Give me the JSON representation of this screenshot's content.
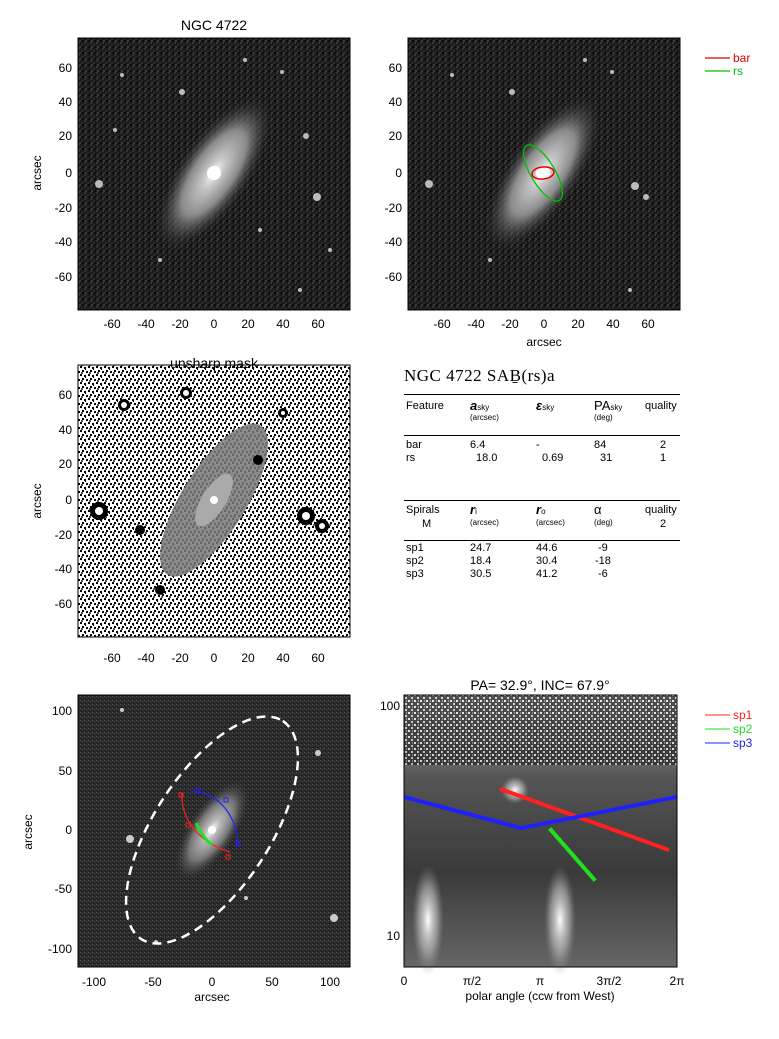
{
  "panel_top_left": {
    "title": "NGC 4722",
    "xticks": [
      "-60",
      "-40",
      "-20",
      "0",
      "20",
      "40",
      "60"
    ],
    "yticks": [
      "60",
      "40",
      "20",
      "0",
      "-20",
      "-40",
      "-60"
    ],
    "ylabel": "arcsec"
  },
  "panel_top_right": {
    "xticks": [
      "-60",
      "-40",
      "-20",
      "0",
      "20",
      "40",
      "60"
    ],
    "yticks": [
      "60",
      "40",
      "20",
      "0",
      "-20",
      "-40",
      "-60"
    ],
    "xlabel": "arcsec",
    "legend": [
      {
        "label": "bar",
        "color": "#e00000"
      },
      {
        "label": "rs",
        "color": "#00c000"
      }
    ]
  },
  "panel_mid_left": {
    "title": "unsharp mask",
    "xticks": [
      "-60",
      "-40",
      "-20",
      "0",
      "20",
      "40",
      "60"
    ],
    "yticks": [
      "60",
      "40",
      "20",
      "0",
      "-20",
      "-40",
      "-60"
    ],
    "ylabel": "arcsec"
  },
  "table": {
    "title": "NGC 4722  SAḆ(rs)a",
    "bar_header": {
      "col1": "Feature",
      "col2": "a",
      "col2_sub": "sky",
      "col2_unit": "(arcsec)",
      "col3": "ε",
      "col3_sub": "sky",
      "col4": "PA",
      "col4_sub": "sky",
      "col4_unit": "(deg)",
      "col5": "quality"
    },
    "bar_rows": [
      {
        "feature": "bar",
        "a": "6.4",
        "eps": "-",
        "pa": "84",
        "quality": "2"
      },
      {
        "feature": "rs",
        "a": "18.0",
        "eps": "0.69",
        "pa": "31",
        "quality": "1"
      }
    ],
    "spiral_header": {
      "col1": "Spirals",
      "col1_sub": "M",
      "col2": "r",
      "col2_sub": "i",
      "col2_unit": "(arcsec)",
      "col3": "r",
      "col3_sub": "o",
      "col3_unit": "(arcsec)",
      "col4": "α",
      "col4_unit": "(deg)",
      "col5": "quality",
      "col5_val": "2"
    },
    "spiral_rows": [
      {
        "name": "sp1",
        "ri": "24.7",
        "ro": "44.6",
        "alpha": "-9"
      },
      {
        "name": "sp2",
        "ri": "18.4",
        "ro": "30.4",
        "alpha": "-18"
      },
      {
        "name": "sp3",
        "ri": "30.5",
        "ro": "41.2",
        "alpha": "-6"
      }
    ]
  },
  "panel_bottom_left": {
    "xticks": [
      "-100",
      "-50",
      "0",
      "50",
      "100"
    ],
    "yticks": [
      "100",
      "50",
      "0",
      "-50",
      "-100"
    ],
    "xlabel": "arcsec",
    "ylabel": "arcsec"
  },
  "panel_bottom_right": {
    "title": "PA=  32.9°, INC=  67.9°",
    "xticks": [
      "0",
      "π/2",
      "π",
      "3π/2",
      "2π"
    ],
    "yticks": [
      "100",
      "10"
    ],
    "xlabel": "polar angle (ccw from West)",
    "legend": [
      {
        "label": "sp1",
        "color": "#ff2020"
      },
      {
        "label": "sp2",
        "color": "#20e020"
      },
      {
        "label": "sp3",
        "color": "#2020ff"
      }
    ]
  },
  "chart_data": [
    {
      "type": "line",
      "panel": "bar/ring ellipse overlay",
      "series": [
        {
          "name": "bar",
          "color": "#e00000",
          "semi_major": 6.4,
          "ellipticity": 0,
          "pa": 84
        },
        {
          "name": "rs",
          "color": "#00c000",
          "semi_major": 18.0,
          "ellipticity": 0.69,
          "pa": 31
        }
      ],
      "xlim": [
        -80,
        80
      ],
      "ylim": [
        -80,
        80
      ]
    },
    {
      "type": "line",
      "panel": "spiral arms in polar coordinates",
      "xlabel": "polar angle (ccw from West)",
      "y_scale": "log",
      "xlim": [
        0,
        6.2832
      ],
      "ylim": [
        8,
        110
      ],
      "series": [
        {
          "name": "sp1",
          "color": "#ff2020",
          "x": [
            2.2,
            6.1
          ],
          "y": [
            44.6,
            24.7
          ]
        },
        {
          "name": "sp2",
          "color": "#20e020",
          "x": [
            3.35,
            4.4
          ],
          "y": [
            30.4,
            18.4
          ]
        },
        {
          "name": "sp3",
          "color": "#2020ff",
          "x": [
            0,
            2.7,
            6.2832
          ],
          "y": [
            41.2,
            30.5,
            41.2
          ]
        }
      ]
    }
  ]
}
